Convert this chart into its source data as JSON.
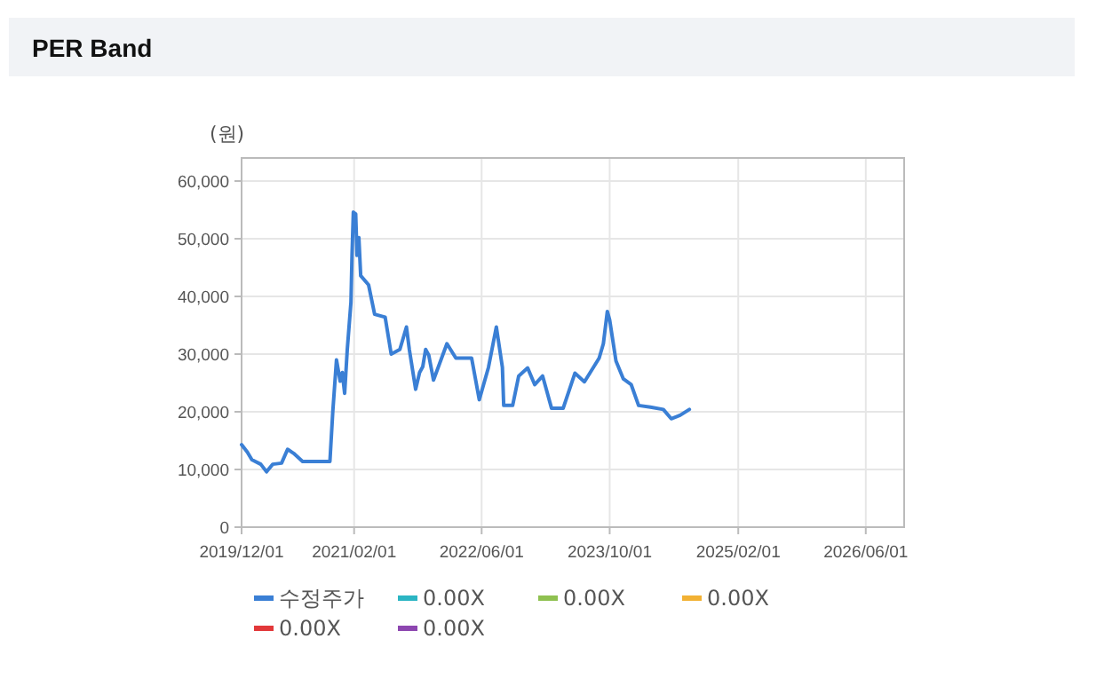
{
  "chart_data": {
    "type": "line",
    "title": "PER Band",
    "ylabel": "(원)",
    "xlim": [
      "2019-12-01",
      "2026-10-25"
    ],
    "xticks": [
      {
        "value": "2019-12-01",
        "label": "2019/12/01"
      },
      {
        "value": "2021-02-01",
        "label": "2021/02/01"
      },
      {
        "value": "2022-06-01",
        "label": "2022/06/01"
      },
      {
        "value": "2023-10-01",
        "label": "2023/10/01"
      },
      {
        "value": "2025-02-01",
        "label": "2025/02/01"
      },
      {
        "value": "2026-06-01",
        "label": "2026/06/01"
      }
    ],
    "ylim": [
      0,
      64000
    ],
    "yticks": [
      0,
      {
        "value": 10000,
        "label": "10,000"
      },
      {
        "value": 20000,
        "label": "20,000"
      },
      {
        "value": 30000,
        "label": "30,000"
      },
      {
        "value": 40000,
        "label": "40,000"
      },
      {
        "value": 50000,
        "label": "50,000"
      },
      {
        "value": 60000,
        "label": "60,000"
      }
    ],
    "grid": true,
    "legend": "bottom",
    "series": [
      {
        "name": "수정주가",
        "color": "#3a7fd5",
        "x": [
          "2019-12-01",
          "2019-12-23",
          "2020-01-09",
          "2020-02-12",
          "2020-03-05",
          "2020-03-28",
          "2020-05-01",
          "2020-05-24",
          "2020-06-16",
          "2020-07-20",
          "2020-11-01",
          "2020-11-12",
          "2020-11-26",
          "2020-12-10",
          "2020-12-18",
          "2020-12-27",
          "2021-01-06",
          "2021-01-20",
          "2021-01-24",
          "2021-01-29",
          "2021-02-07",
          "2021-02-12",
          "2021-02-19",
          "2021-02-26",
          "2021-03-28",
          "2021-04-20",
          "2021-05-30",
          "2021-06-22",
          "2021-07-25",
          "2021-08-19",
          "2021-08-30",
          "2021-09-23",
          "2021-10-08",
          "2021-10-20",
          "2021-10-31",
          "2021-11-12",
          "2021-11-30",
          "2022-01-20",
          "2022-02-23",
          "2022-04-24",
          "2022-05-23",
          "2022-06-27",
          "2022-07-27",
          "2022-08-19",
          "2022-08-24",
          "2022-09-27",
          "2022-10-20",
          "2022-11-23",
          "2022-12-20",
          "2023-01-19",
          "2023-02-22",
          "2023-04-07",
          "2023-05-22",
          "2023-06-27",
          "2023-08-22",
          "2023-09-07",
          "2023-09-22",
          "2023-10-01",
          "2023-10-25",
          "2023-11-22",
          "2023-12-22",
          "2024-01-19",
          "2024-03-04",
          "2024-04-22",
          "2024-05-22",
          "2024-06-25",
          "2024-07-30"
        ],
        "values": [
          14300,
          13000,
          11700,
          10900,
          9600,
          10900,
          11100,
          13500,
          12800,
          11400,
          11400,
          20100,
          29000,
          25300,
          26800,
          23200,
          30800,
          39000,
          47100,
          54600,
          54300,
          47100,
          50200,
          43600,
          42000,
          36900,
          36400,
          30000,
          30800,
          34700,
          30800,
          23900,
          26800,
          27800,
          30800,
          29800,
          25500,
          31800,
          29300,
          29300,
          22100,
          27700,
          34700,
          27700,
          21100,
          21100,
          26200,
          27600,
          24700,
          26200,
          20600,
          20600,
          26700,
          25200,
          29300,
          31800,
          37400,
          35900,
          28800,
          25700,
          24700,
          21100,
          20800,
          20400,
          18800,
          19400,
          20400
        ]
      },
      {
        "name": "0.00X",
        "color": "#2bb5c3"
      },
      {
        "name": "0.00X",
        "color": "#8fc150"
      },
      {
        "name": "0.00X",
        "color": "#f2b134"
      },
      {
        "name": "0.00X",
        "color": "#e2383a"
      },
      {
        "name": "0.00X",
        "color": "#8d46b0"
      }
    ]
  }
}
